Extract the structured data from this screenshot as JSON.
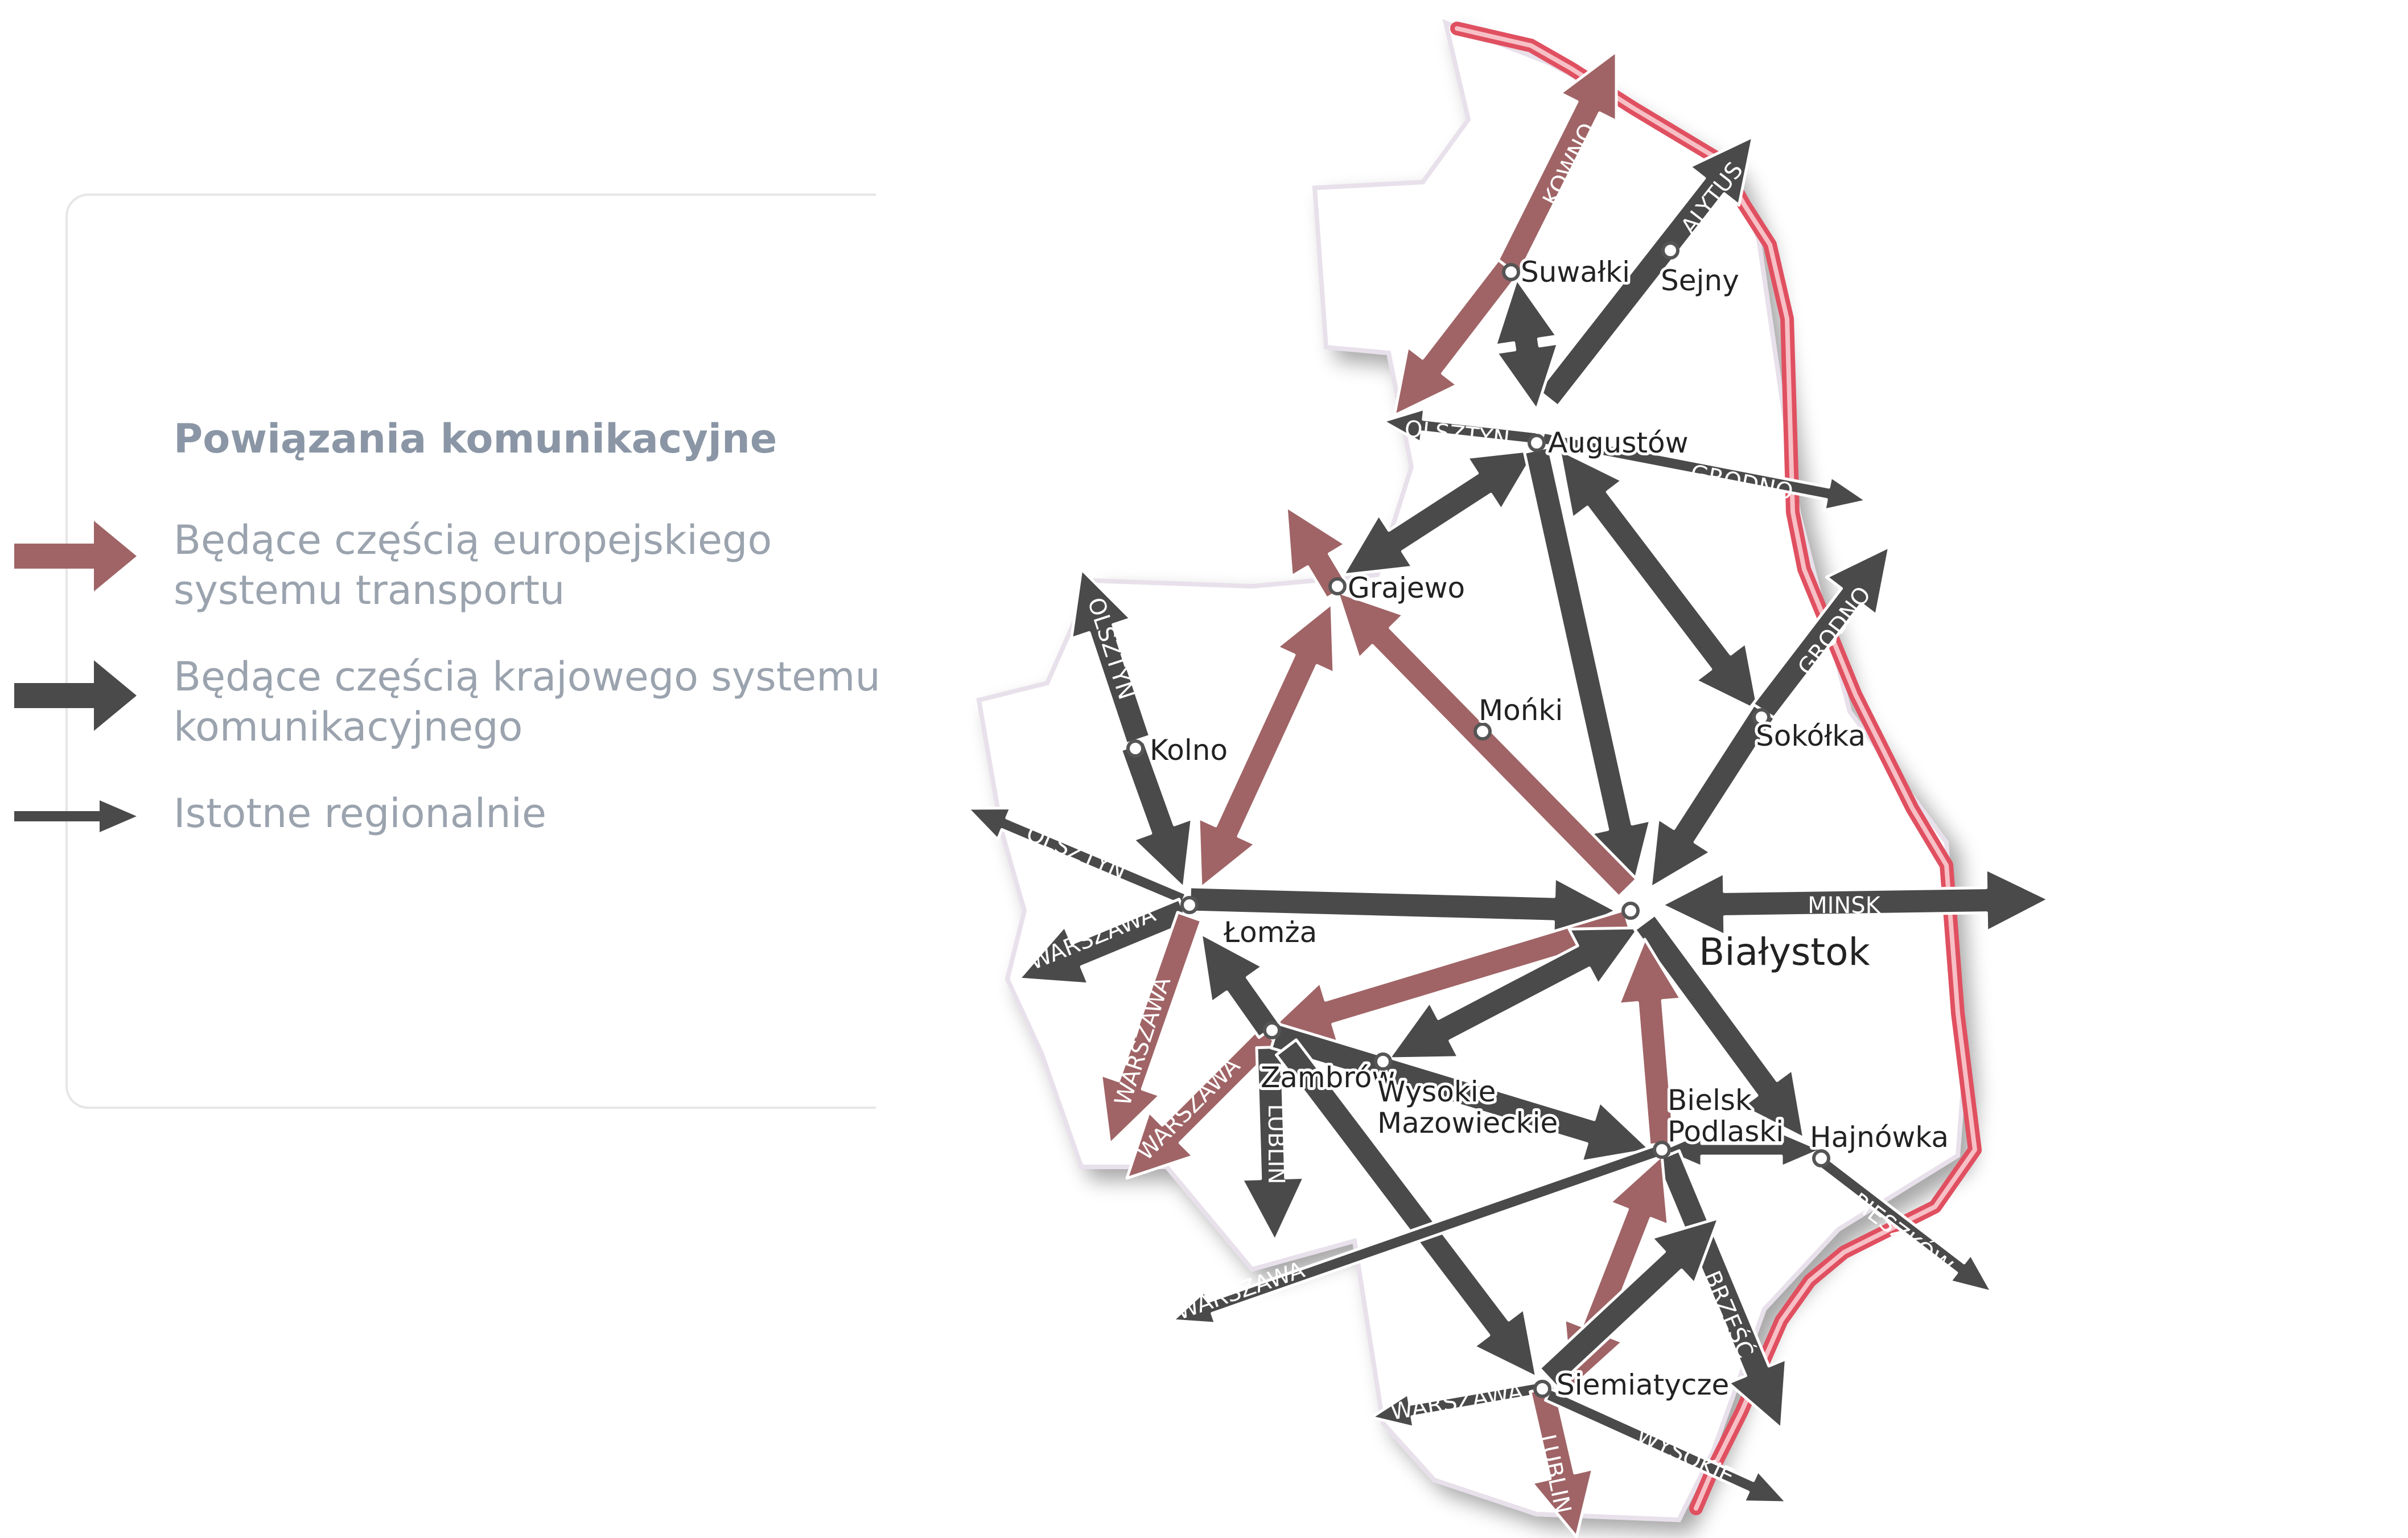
{
  "legend": {
    "title": "Powiązania komunikacyjne",
    "european": "Będące częścią europejskiego\nsystemu transportu",
    "national": "Będące częścią krajowego systemu\nkomunikacyjnego",
    "regional": "Istotne regionalnie"
  },
  "colors": {
    "european": "#a06466",
    "national": "#4a4a4a",
    "border": "#e05060",
    "region_fill": "#ffffff"
  },
  "cities": {
    "suwalki": "Suwałki",
    "sejny": "Sejny",
    "augustow": "Augustów",
    "grajewo": "Grajewo",
    "monki": "Mońki",
    "kolno": "Kolno",
    "sokolka": "Sokółka",
    "lomza": "Łomża",
    "bialystok": "Białystok",
    "zambrow": "Zambrów",
    "wysokie": "Wysokie\nMazowieckie",
    "bielsk": "Bielsk\nPodlaski",
    "hajnowka": "Hajnówka",
    "siemiatycze": "Siemiatycze"
  },
  "directions": {
    "kowno": "KOWNO",
    "alytus": "ALYTUS",
    "olsztyn_n": "OLSZTYN",
    "grodno_1": "GRODNO",
    "grodno_2": "GRODNO",
    "olsztyn_w": "OLSZTYN",
    "olsztyn_sw": "OLSZTYN",
    "minsk": "MINSK",
    "warszawa_1": "WARSZAWA",
    "warszawa_2": "WARSZAWA",
    "warszawa_3": "WARSZAWA",
    "warszawa_4": "WARSZAWA",
    "warszawa_5": "WARSZAWA",
    "lublin_1": "LUBLIN",
    "lublin_2": "LUBLIN",
    "brzesc": "BRZEŚĆ",
    "pieszkow": "PIESZKÓW",
    "wysokie_s": "WYSOKIE"
  }
}
